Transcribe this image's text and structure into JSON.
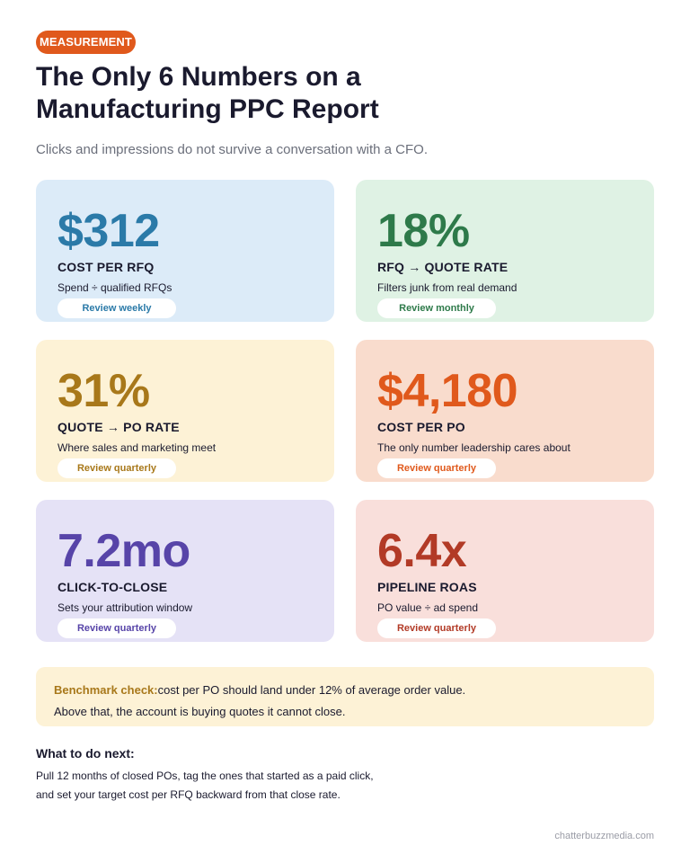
{
  "badge": "MEASUREMENT",
  "title": "The Only 6 Numbers on a Manufacturing PPC Report",
  "subtitle": "Clicks and impressions do not survive a conversation with a CFO.",
  "metrics": [
    {
      "value": "$312",
      "label": "COST PER RFQ",
      "desc": "Spend ÷ qualified RFQs",
      "cadence": "Review weekly",
      "bg": "#dcebf8",
      "color": "#2b7aa8"
    },
    {
      "value": "18%",
      "label": "RFQ → QUOTE RATE",
      "desc": "Filters junk from real demand",
      "cadence": "Review monthly",
      "bg": "#dff2e4",
      "color": "#2e7a4a"
    },
    {
      "value": "31%",
      "label": "QUOTE → PO RATE",
      "desc": "Where sales and marketing meet",
      "cadence": "Review quarterly",
      "bg": "#fdf2d6",
      "color": "#a8781a"
    },
    {
      "value": "$4,180",
      "label": "COST PER PO",
      "desc": "The only number leadership cares about",
      "cadence": "Review quarterly",
      "bg": "#f9dccd",
      "color": "#e0591c"
    },
    {
      "value": "7.2mo",
      "label": "CLICK-TO-CLOSE",
      "desc": "Sets your attribution window",
      "cadence": "Review quarterly",
      "bg": "#e5e2f6",
      "color": "#5744a8"
    },
    {
      "value": "6.4x",
      "label": "PIPELINE ROAS",
      "desc": "PO value ÷ ad spend",
      "cadence": "Review quarterly",
      "bg": "#f9dfdb",
      "color": "#b23a26"
    }
  ],
  "benchmark": {
    "label": "Benchmark check:",
    "line1": "cost per PO should land under 12% of average order value.",
    "line2": "Above that, the account is buying quotes it cannot close."
  },
  "next": {
    "title": "What to do next:",
    "line1": "Pull 12 months of closed POs, tag the ones that started as a paid click,",
    "line2": "and set your target cost per RFQ backward from that close rate."
  },
  "footer": "chatterbuzzmedia.com"
}
